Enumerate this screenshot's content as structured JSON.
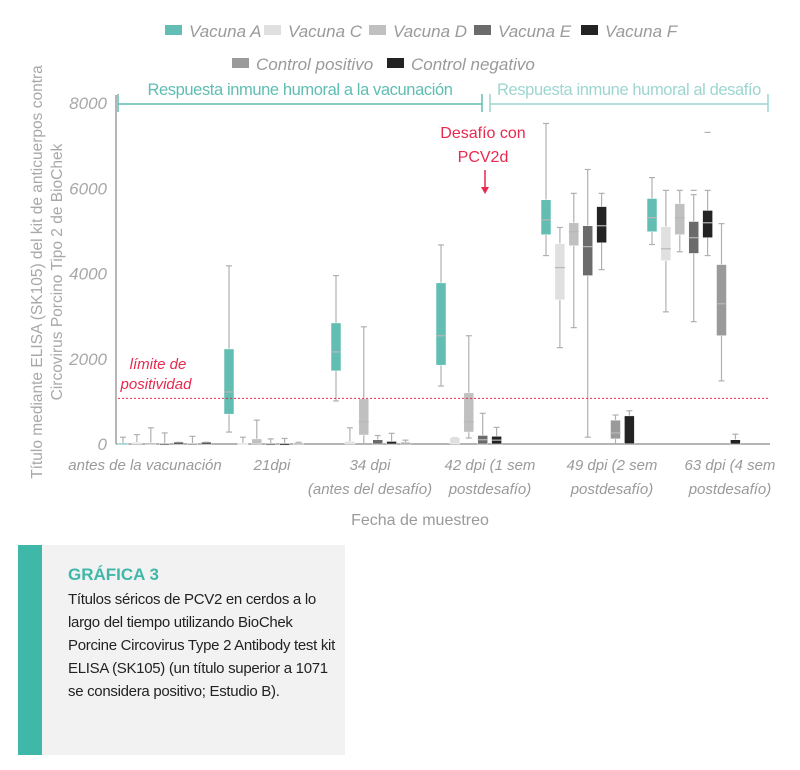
{
  "chart_data": {
    "type": "box",
    "ylabel": "Título mediante ELISA (SK105) del kit de anticuerpos contra Circovirus Porcino Tipo 2 de BioChek",
    "xlabel": "Fecha de muestreo",
    "ylim": [
      0,
      8000
    ],
    "yticks": [
      "0",
      "2000",
      "4000",
      "6000",
      "8000"
    ],
    "ytick_values": [
      0,
      2000,
      4000,
      6000,
      8000
    ],
    "categories": [
      [
        "antes de la vacunación"
      ],
      [
        "21dpi"
      ],
      [
        "34 dpi",
        "(antes del desafío)"
      ],
      [
        "42 dpi (1 sem",
        "postdesafío)"
      ],
      [
        "49 dpi (2 sem",
        "postdesafío)"
      ],
      [
        "63 dpi (4 sem",
        "postdesafío)"
      ]
    ],
    "series": [
      {
        "name": "Vacuna A",
        "color": "#62bdb3"
      },
      {
        "name": "Vacuna C",
        "color": "#e0e0e0"
      },
      {
        "name": "Vacuna D",
        "color": "#c0c0c0"
      },
      {
        "name": "Vacuna E",
        "color": "#6b6b6b"
      },
      {
        "name": "Vacuna F",
        "color": "#232323"
      },
      {
        "name": "Control positivo",
        "color": "#9a9a9a"
      },
      {
        "name": "Control negativo",
        "color": "#232323"
      }
    ],
    "boxes": [
      [
        {
          "min": 0,
          "q1": 0,
          "median": 10,
          "q3": 20,
          "max": 160
        },
        {
          "min": 0,
          "q1": 0,
          "median": 20,
          "q3": 40,
          "max": 220
        },
        {
          "min": 0,
          "q1": 0,
          "median": 10,
          "q3": 30,
          "max": 380
        },
        {
          "min": 0,
          "q1": 0,
          "median": 5,
          "q3": 10,
          "max": 260
        },
        {
          "min": 0,
          "q1": 0,
          "median": 20,
          "q3": 40,
          "max": 40
        },
        {
          "min": 0,
          "q1": 0,
          "median": 5,
          "q3": 10,
          "max": 180
        },
        {
          "min": 0,
          "q1": 0,
          "median": 20,
          "q3": 40,
          "max": 40
        }
      ],
      [
        {
          "min": 280,
          "q1": 700,
          "median": 1220,
          "q3": 2230,
          "max": 4180
        },
        {
          "min": 0,
          "q1": 0,
          "median": 10,
          "q3": 20,
          "max": 160
        },
        {
          "min": 0,
          "q1": 0,
          "median": 60,
          "q3": 120,
          "max": 560
        },
        {
          "min": 0,
          "q1": 0,
          "median": 5,
          "q3": 10,
          "max": 120
        },
        {
          "min": 0,
          "q1": 0,
          "median": 5,
          "q3": 10,
          "max": 130
        },
        {
          "min": 0,
          "q1": 0,
          "median": 10,
          "q3": 20,
          "max": 40
        },
        null
      ],
      [
        {
          "min": 1010,
          "q1": 1715,
          "median": 2160,
          "q3": 2840,
          "max": 3950
        },
        {
          "min": 0,
          "q1": 0,
          "median": 30,
          "q3": 60,
          "max": 380
        },
        {
          "min": 0,
          "q1": 210,
          "median": 520,
          "q3": 1060,
          "max": 2750
        },
        {
          "min": 0,
          "q1": 0,
          "median": 60,
          "q3": 100,
          "max": 200
        },
        {
          "min": 0,
          "q1": 0,
          "median": 40,
          "q3": 60,
          "max": 250
        },
        {
          "min": 0,
          "q1": 0,
          "median": 20,
          "q3": 40,
          "max": 90
        },
        null
      ],
      [
        {
          "min": 1360,
          "q1": 1850,
          "median": 2540,
          "q3": 3780,
          "max": 4670
        },
        {
          "min": 0,
          "q1": 0,
          "median": 80,
          "q3": 150,
          "max": 150
        },
        {
          "min": 140,
          "q1": 280,
          "median": 520,
          "q3": 1200,
          "max": 2540
        },
        {
          "min": 0,
          "q1": 0,
          "median": 100,
          "q3": 200,
          "max": 720
        },
        {
          "min": 0,
          "q1": 0,
          "median": 90,
          "q3": 180,
          "max": 390
        },
        null,
        null
      ],
      [
        {
          "min": 4420,
          "q1": 4910,
          "median": 5260,
          "q3": 5730,
          "max": 7520
        },
        {
          "min": 2260,
          "q1": 3380,
          "median": 4140,
          "q3": 4700,
          "max": 5080
        },
        {
          "min": 2730,
          "q1": 4650,
          "median": 4980,
          "q3": 5190,
          "max": 5880
        },
        {
          "min": 160,
          "q1": 3950,
          "median": 4630,
          "q3": 5120,
          "max": 6440
        },
        {
          "min": 4090,
          "q1": 4720,
          "median": 5120,
          "q3": 5570,
          "max": 5880
        },
        {
          "min": 0,
          "q1": 120,
          "median": 260,
          "q3": 560,
          "max": 680
        },
        {
          "min": 0,
          "q1": 0,
          "median": 0,
          "q3": 660,
          "max": 780
        }
      ],
      [
        {
          "min": 4680,
          "q1": 4980,
          "median": 5310,
          "q3": 5760,
          "max": 6250
        },
        {
          "min": 3100,
          "q1": 4300,
          "median": 4580,
          "q3": 5100,
          "max": 5950
        },
        {
          "min": 4510,
          "q1": 4910,
          "median": 5310,
          "q3": 5640,
          "max": 5950
        },
        {
          "min": 2870,
          "q1": 4470,
          "median": 4840,
          "q3": 5220,
          "max": 5850,
          "outlier": 5950
        },
        {
          "min": 4420,
          "q1": 4840,
          "median": 5190,
          "q3": 5480,
          "max": 5950,
          "outlier": 7310
        },
        {
          "min": 1480,
          "q1": 2540,
          "median": 3290,
          "q3": 4210,
          "max": 5170
        },
        {
          "min": 0,
          "q1": 0,
          "median": 50,
          "q3": 100,
          "max": 230
        }
      ]
    ],
    "threshold": {
      "value": 1071,
      "label": [
        "límite de",
        "positividad"
      ],
      "color": "#e8294f"
    },
    "annotation": {
      "label": [
        "Desafío con",
        "PCV2d"
      ],
      "color": "#e8294f"
    },
    "phases": [
      {
        "label": "Respuesta inmune humoral a la vacunación",
        "color": "#5fbdb2"
      },
      {
        "label": "Respuesta inmune humoral al desafío",
        "color": "#9dd6d0"
      }
    ],
    "grid": false,
    "legend_position": "top-center"
  },
  "caption": {
    "title": "GRÁFICA 3",
    "text": "Títulos séricos de PCV2 en cerdos a lo largo del tiempo utilizando BioChek Porcine Circovirus Type 2 Antibody test kit ELISA (SK105) (un título superior a 1071 se considera positivo; Estudio B)."
  }
}
